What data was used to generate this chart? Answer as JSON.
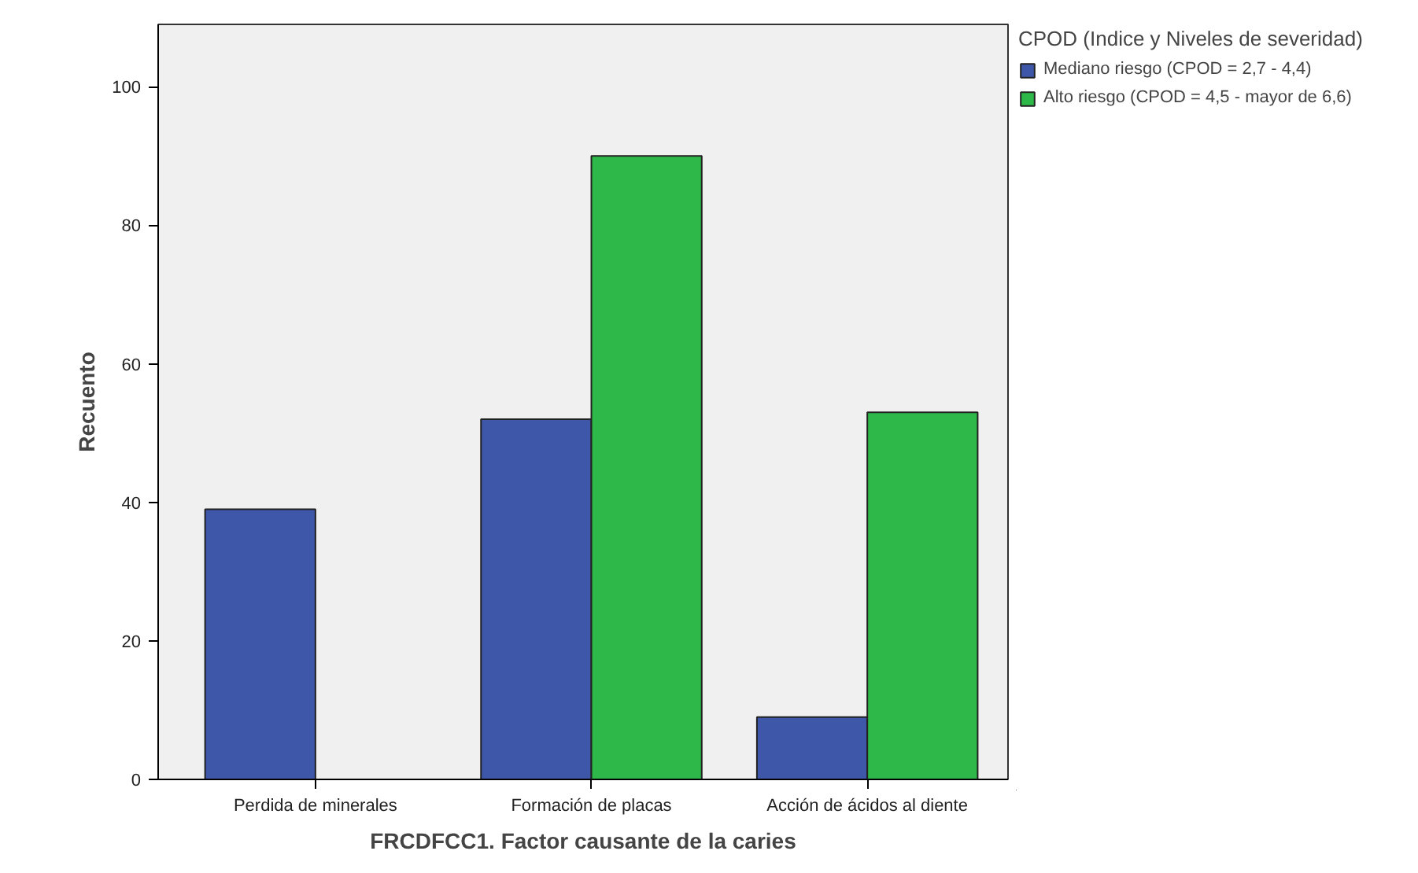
{
  "chart_data": {
    "type": "bar",
    "xlabel": "FRCDFCC1. Factor causante de la caries",
    "ylabel": "Recuento",
    "legend_title": "CPOD (Indice y Niveles de severidad)",
    "categories": [
      "Perdida de minerales",
      "Formación de placas",
      "Acción de ácidos al diente"
    ],
    "series": [
      {
        "name": "Mediano riesgo (CPOD = 2,7 - 4,4)",
        "color": "#3f57a9",
        "values": [
          39,
          52,
          9
        ]
      },
      {
        "name": "Alto riesgo (CPOD = 4,5 - mayor de 6,6)",
        "color": "#2fb84a",
        "values": [
          null,
          90,
          53
        ]
      }
    ],
    "ylim": [
      0,
      109
    ],
    "yticks": [
      0,
      20,
      40,
      60,
      80,
      100
    ],
    "grid": false,
    "legend": "right"
  }
}
